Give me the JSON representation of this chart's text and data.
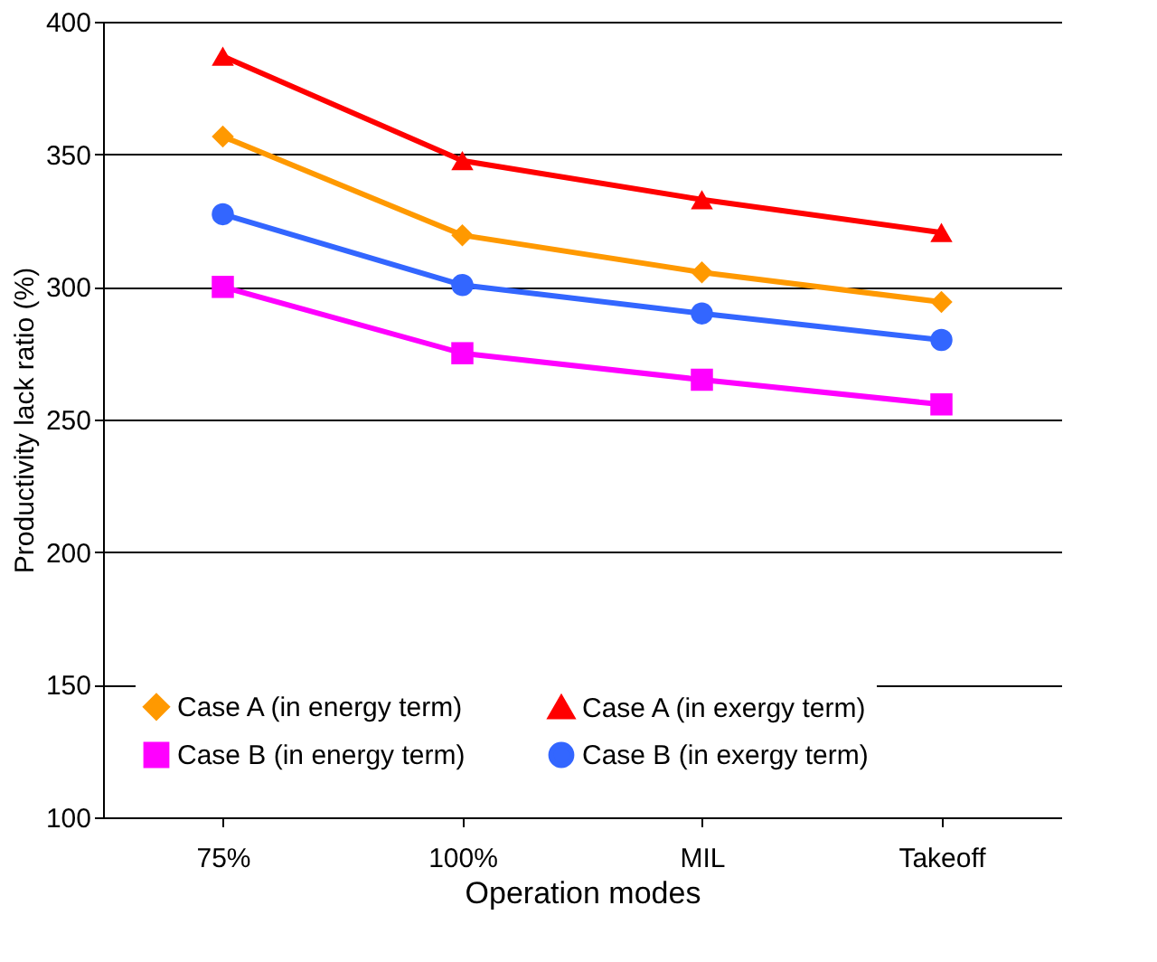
{
  "chart_data": {
    "type": "line",
    "xlabel": "Operation modes",
    "ylabel": "Productivity lack ratio (%)",
    "categories": [
      "75%",
      "100%",
      "MIL",
      "Takeoff"
    ],
    "series": [
      {
        "name": "Case A (in energy term)",
        "color": "#ff9900",
        "marker": "diamond",
        "values": [
          356.7,
          319.5,
          305.5,
          294.3
        ]
      },
      {
        "name": "Case B (in energy term)",
        "color": "#ff00ff",
        "marker": "square",
        "values": [
          300,
          275,
          265,
          255.7
        ]
      },
      {
        "name": "Case A (in exergy term)",
        "color": "#ff0000",
        "marker": "triangle",
        "values": [
          387,
          347.6,
          332.9,
          320.5
        ]
      },
      {
        "name": "Case B (in exergy term)",
        "color": "#3366ff",
        "marker": "circle",
        "values": [
          327.4,
          300.7,
          290,
          280
        ]
      }
    ],
    "ylim": [
      100,
      400
    ],
    "yticks": [
      100,
      150,
      200,
      250,
      300,
      350,
      400
    ],
    "grid": "y",
    "legend": "bottom",
    "line_style": "solid"
  }
}
